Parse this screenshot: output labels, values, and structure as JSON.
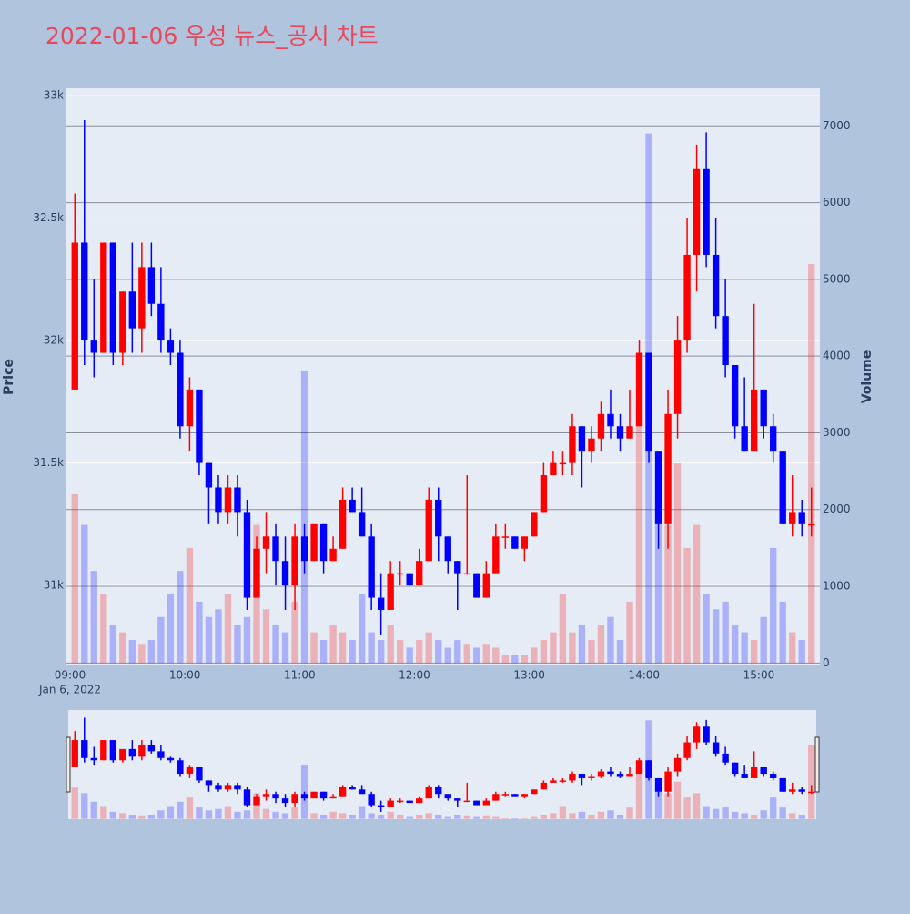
{
  "chart_data": {
    "type": "candlestick",
    "title": "2022-01-06 우성 뉴스_공시 차트",
    "x": [
      "09:00",
      "09:05",
      "09:10",
      "09:15",
      "09:20",
      "09:25",
      "09:30",
      "09:35",
      "09:40",
      "09:45",
      "09:50",
      "09:55",
      "10:00",
      "10:05",
      "10:10",
      "10:15",
      "10:20",
      "10:25",
      "10:30",
      "10:35",
      "10:40",
      "10:45",
      "10:50",
      "10:55",
      "11:00",
      "11:05",
      "11:10",
      "11:15",
      "11:20",
      "11:25",
      "11:30",
      "11:35",
      "11:40",
      "11:45",
      "11:50",
      "11:55",
      "12:00",
      "12:05",
      "12:10",
      "12:15",
      "12:20",
      "12:25",
      "12:30",
      "12:35",
      "12:40",
      "12:45",
      "12:50",
      "12:55",
      "13:00",
      "13:05",
      "13:10",
      "13:15",
      "13:20",
      "13:25",
      "13:30",
      "13:35",
      "13:40",
      "13:45",
      "13:50",
      "13:55",
      "14:00",
      "14:05",
      "14:10",
      "14:15",
      "14:20",
      "14:25",
      "14:30",
      "14:35",
      "14:40",
      "14:45",
      "14:50",
      "14:55",
      "15:00",
      "15:05",
      "15:10",
      "15:15",
      "15:20",
      "15:25"
    ],
    "open": [
      31800,
      32400,
      32000,
      31950,
      32400,
      31950,
      32200,
      32050,
      32300,
      32150,
      32000,
      31950,
      31650,
      31800,
      31500,
      31400,
      31300,
      31400,
      31300,
      30950,
      31150,
      31200,
      31100,
      31000,
      31200,
      31100,
      31250,
      31100,
      31150,
      31350,
      31300,
      31200,
      30950,
      30900,
      31050,
      31050,
      31000,
      31100,
      31350,
      31200,
      31100,
      31050,
      31050,
      30950,
      31050,
      31200,
      31200,
      31150,
      31200,
      31300,
      31450,
      31500,
      31500,
      31650,
      31550,
      31600,
      31700,
      31650,
      31600,
      31650,
      31950,
      31550,
      31250,
      31700,
      32000,
      32350,
      32700,
      32350,
      32100,
      31900,
      31650,
      31550,
      31800,
      31650,
      31550,
      31250,
      31300,
      31250
    ],
    "high": [
      32600,
      32900,
      32250,
      32400,
      32400,
      32200,
      32400,
      32400,
      32400,
      32300,
      32050,
      32000,
      31850,
      31800,
      31500,
      31450,
      31450,
      31450,
      31350,
      31200,
      31300,
      31250,
      31200,
      31250,
      31250,
      31250,
      31250,
      31200,
      31400,
      31400,
      31400,
      31250,
      31050,
      31100,
      31100,
      31050,
      31150,
      31400,
      31400,
      31200,
      31100,
      31450,
      31050,
      31100,
      31250,
      31250,
      31200,
      31200,
      31300,
      31500,
      31550,
      31550,
      31700,
      31650,
      31650,
      31750,
      31800,
      31700,
      31800,
      32000,
      31950,
      31550,
      31800,
      32100,
      32500,
      32800,
      32850,
      32500,
      32250,
      31900,
      31850,
      32150,
      31800,
      31700,
      31550,
      31450,
      31350,
      31400
    ],
    "low": [
      31800,
      31900,
      31850,
      31950,
      31900,
      31900,
      31950,
      31950,
      32100,
      31950,
      31900,
      31600,
      31550,
      31450,
      31250,
      31250,
      31250,
      31200,
      30900,
      30950,
      31050,
      31000,
      30900,
      30900,
      31050,
      31100,
      31050,
      31100,
      31150,
      31300,
      31200,
      30900,
      30800,
      30900,
      31000,
      31000,
      31000,
      31100,
      31100,
      31050,
      30900,
      31050,
      30950,
      30950,
      31050,
      31150,
      31150,
      31100,
      31200,
      31300,
      31450,
      31450,
      31450,
      31400,
      31500,
      31550,
      31600,
      31550,
      31600,
      31650,
      31500,
      31150,
      31150,
      31600,
      31950,
      32200,
      32300,
      32050,
      31850,
      31600,
      31550,
      31550,
      31600,
      31500,
      31250,
      31200,
      31200,
      31200
    ],
    "close": [
      32400,
      32000,
      31950,
      32400,
      31950,
      32200,
      32050,
      32300,
      32150,
      32000,
      31950,
      31650,
      31800,
      31500,
      31400,
      31300,
      31400,
      31300,
      30950,
      31150,
      31200,
      31100,
      31000,
      31200,
      31100,
      31250,
      31100,
      31150,
      31350,
      31300,
      31200,
      30950,
      30900,
      31050,
      31050,
      31000,
      31100,
      31350,
      31200,
      31100,
      31050,
      31050,
      30950,
      31050,
      31200,
      31200,
      31150,
      31200,
      31300,
      31450,
      31500,
      31500,
      31650,
      31550,
      31600,
      31700,
      31650,
      31600,
      31650,
      31950,
      31550,
      31250,
      31700,
      32000,
      32350,
      32700,
      32350,
      32100,
      31900,
      31650,
      31550,
      31800,
      31650,
      31550,
      31250,
      31300,
      31250,
      31250
    ],
    "volume": [
      2200,
      1800,
      1200,
      900,
      500,
      400,
      300,
      250,
      300,
      600,
      900,
      1200,
      1500,
      800,
      600,
      700,
      900,
      500,
      600,
      1800,
      700,
      500,
      400,
      800,
      3800,
      400,
      300,
      500,
      400,
      300,
      900,
      400,
      300,
      500,
      300,
      200,
      300,
      400,
      300,
      200,
      300,
      250,
      200,
      250,
      200,
      100,
      100,
      100,
      200,
      300,
      400,
      900,
      400,
      500,
      300,
      500,
      600,
      300,
      800,
      3300,
      6900,
      2200,
      1800,
      2600,
      1500,
      1800,
      900,
      700,
      800,
      500,
      400,
      300,
      600,
      1500,
      800,
      400,
      300,
      5200
    ],
    "increasing_color": "#ff0000",
    "decreasing_color": "#0000ff",
    "ylabel": "Price",
    "y2label": "Volume",
    "ylim": [
      30677,
      33030
    ],
    "yticks": [
      {
        "value": 31000,
        "label": "31k"
      },
      {
        "value": 31500,
        "label": "31.5k"
      },
      {
        "value": 32000,
        "label": "32k"
      },
      {
        "value": 32500,
        "label": "32.5k"
      },
      {
        "value": 33000,
        "label": "33k"
      }
    ],
    "y2lim": [
      -20,
      7490
    ],
    "y2ticks": [
      0,
      1000,
      2000,
      3000,
      4000,
      5000,
      6000,
      7000
    ],
    "xlim": [
      "09:00",
      "15:30"
    ],
    "xticks": [
      "09:00",
      "10:00",
      "11:00",
      "12:00",
      "13:00",
      "14:00",
      "15:00"
    ],
    "x_date": "Jan 6, 2022",
    "grid": true
  }
}
